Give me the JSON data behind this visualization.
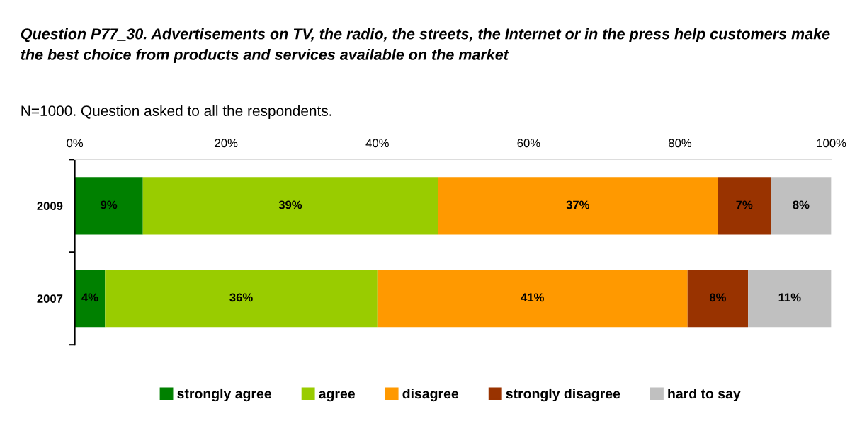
{
  "chart_data": {
    "type": "bar",
    "orientation": "horizontal",
    "stacked": true,
    "title": "Question P77_30. Advertisements on TV, the radio, the streets, the Internet or in the press help customers make the best choice from products and services available on the market",
    "subtitle": "N=1000. Question asked to all the respondents.",
    "categories": [
      "2009",
      "2007"
    ],
    "series": [
      {
        "name": "strongly agree",
        "color": "#008000",
        "values": [
          9,
          4
        ],
        "value_labels": [
          "9%",
          "4%"
        ]
      },
      {
        "name": "agree",
        "color": "#99cc00",
        "values": [
          39,
          36
        ],
        "value_labels": [
          "39%",
          "36%"
        ]
      },
      {
        "name": "disagree",
        "color": "#ff9900",
        "values": [
          37,
          41
        ],
        "value_labels": [
          "37%",
          "41%"
        ]
      },
      {
        "name": "strongly disagree",
        "color": "#993300",
        "values": [
          7,
          8
        ],
        "value_labels": [
          "7%",
          "8%"
        ]
      },
      {
        "name": "hard to say",
        "color": "#c0c0c0",
        "values": [
          8,
          11
        ],
        "value_labels": [
          "8%",
          "11%"
        ]
      }
    ],
    "xlim": [
      0,
      100
    ],
    "xticks": [
      {
        "value": 0,
        "label": "0%"
      },
      {
        "value": 20,
        "label": "20%"
      },
      {
        "value": 40,
        "label": "40%"
      },
      {
        "value": 60,
        "label": "60%"
      },
      {
        "value": 80,
        "label": "80%"
      },
      {
        "value": 100,
        "label": "100%"
      }
    ],
    "grid": false,
    "legend": "bottom"
  }
}
